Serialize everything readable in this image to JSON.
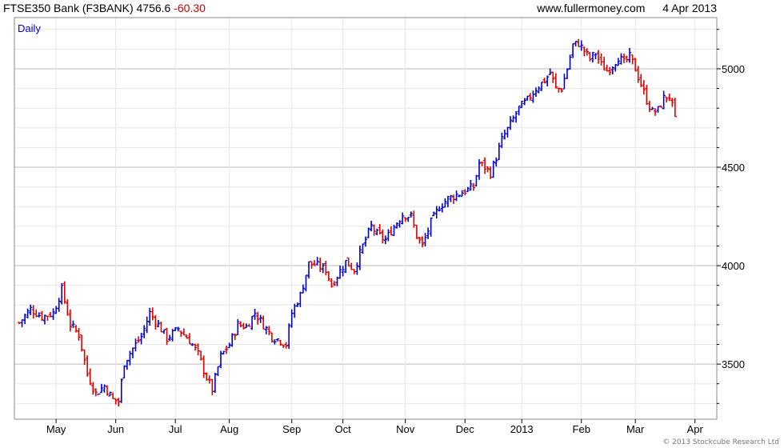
{
  "header": {
    "instrument": "FTSE350 Bank (F3BANK)",
    "last": "4756.6",
    "change": "-60.30",
    "site": "www.fullermoney.com",
    "date": "4 Apr 2013"
  },
  "footer": {
    "copyright": "© 2013 Stockcube Research Ltd"
  },
  "colors": {
    "up": "#0000cc",
    "down": "#dd0000",
    "grid": "#cccccc",
    "axis": "#000000"
  },
  "chart_data": {
    "type": "ohlc",
    "period_label": "Daily",
    "y_axis_side": "right",
    "ylim": [
      3220,
      5260
    ],
    "y_ticks": [
      3500,
      4000,
      4500,
      5000
    ],
    "grid": true,
    "x_ticks": [
      "May",
      "Jun",
      "Jul",
      "Aug",
      "Sep",
      "Oct",
      "Nov",
      "Dec",
      "2013",
      "Feb",
      "Mar",
      "Apr"
    ],
    "x_tick_day_index": [
      13,
      34,
      55,
      74,
      96,
      114,
      136,
      157,
      177,
      198,
      217,
      238
    ],
    "close_path": [
      [
        0,
        3710
      ],
      [
        4,
        3780
      ],
      [
        8,
        3740
      ],
      [
        12,
        3760
      ],
      [
        15,
        3880
      ],
      [
        18,
        3700
      ],
      [
        21,
        3650
      ],
      [
        24,
        3450
      ],
      [
        27,
        3350
      ],
      [
        30,
        3390
      ],
      [
        33,
        3320
      ],
      [
        35,
        3310
      ],
      [
        37,
        3510
      ],
      [
        40,
        3580
      ],
      [
        43,
        3640
      ],
      [
        46,
        3760
      ],
      [
        49,
        3700
      ],
      [
        52,
        3630
      ],
      [
        56,
        3680
      ],
      [
        60,
        3620
      ],
      [
        63,
        3550
      ],
      [
        66,
        3430
      ],
      [
        68,
        3370
      ],
      [
        71,
        3540
      ],
      [
        74,
        3600
      ],
      [
        77,
        3700
      ],
      [
        80,
        3690
      ],
      [
        83,
        3760
      ],
      [
        86,
        3700
      ],
      [
        89,
        3640
      ],
      [
        92,
        3620
      ],
      [
        94,
        3600
      ],
      [
        96,
        3760
      ],
      [
        99,
        3850
      ],
      [
        102,
        4010
      ],
      [
        105,
        4000
      ],
      [
        108,
        3980
      ],
      [
        110,
        3900
      ],
      [
        112,
        3950
      ],
      [
        115,
        4020
      ],
      [
        118,
        3980
      ],
      [
        121,
        4100
      ],
      [
        124,
        4200
      ],
      [
        126,
        4160
      ],
      [
        129,
        4130
      ],
      [
        132,
        4200
      ],
      [
        135,
        4260
      ],
      [
        138,
        4250
      ],
      [
        140,
        4150
      ],
      [
        142,
        4100
      ],
      [
        145,
        4220
      ],
      [
        148,
        4300
      ],
      [
        151,
        4340
      ],
      [
        154,
        4360
      ],
      [
        157,
        4380
      ],
      [
        160,
        4400
      ],
      [
        162,
        4520
      ],
      [
        164,
        4500
      ],
      [
        166,
        4470
      ],
      [
        168,
        4550
      ],
      [
        170,
        4640
      ],
      [
        173,
        4720
      ],
      [
        176,
        4800
      ],
      [
        179,
        4840
      ],
      [
        182,
        4900
      ],
      [
        185,
        4940
      ],
      [
        187,
        4980
      ],
      [
        189,
        4900
      ],
      [
        191,
        4900
      ],
      [
        193,
        5000
      ],
      [
        195,
        5120
      ],
      [
        197,
        5130
      ],
      [
        199,
        5090
      ],
      [
        201,
        5050
      ],
      [
        203,
        5080
      ],
      [
        205,
        5020
      ],
      [
        207,
        4990
      ],
      [
        209,
        5020
      ],
      [
        211,
        5060
      ],
      [
        213,
        5030
      ],
      [
        215,
        5060
      ],
      [
        217,
        5000
      ],
      [
        219,
        4920
      ],
      [
        221,
        4840
      ],
      [
        223,
        4780
      ],
      [
        225,
        4790
      ],
      [
        227,
        4850
      ],
      [
        229,
        4860
      ],
      [
        231,
        4757
      ]
    ],
    "ohlc_seed": 7,
    "typical_daily_range": 50
  }
}
